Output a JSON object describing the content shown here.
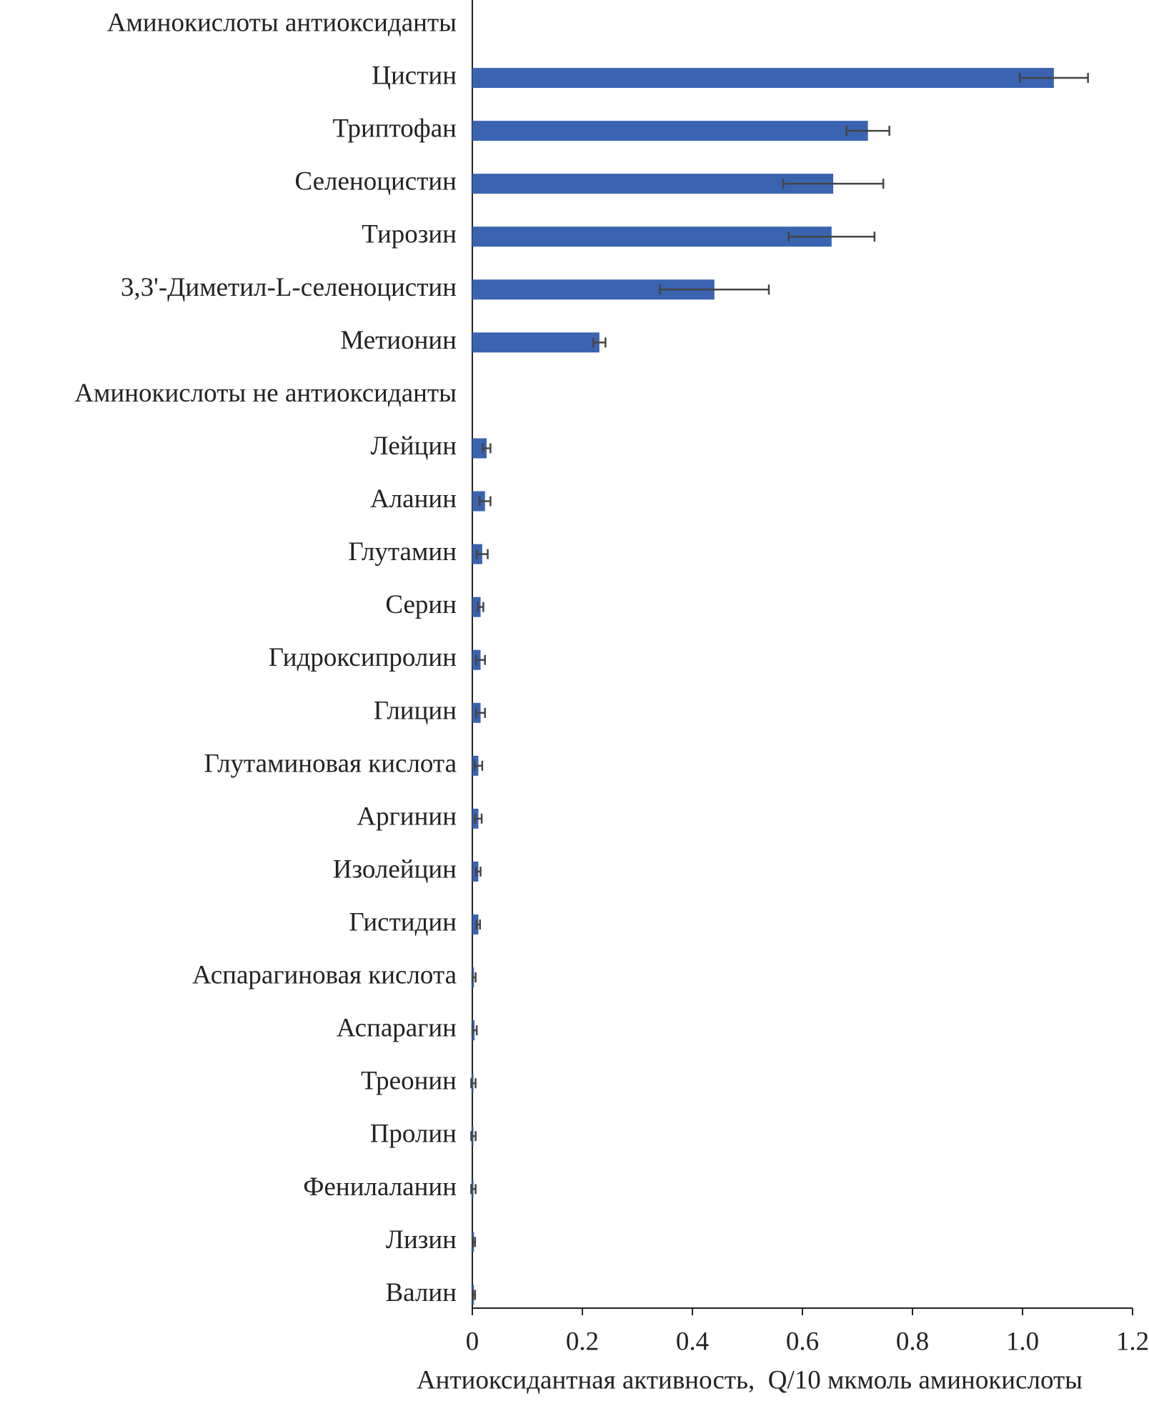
{
  "chart_data": {
    "type": "hbar",
    "xlabel": "Антиоксидантная активность,  Q/10 мкмоль аминокислоты",
    "categories": [
      "Аминокислоты антиоксиданты",
      "Цистин",
      "Триптофан",
      "Селеноцистин",
      "Тирозин",
      "3,3'-Диметил-L-селеноцистин",
      "Метионин",
      "Аминокислоты не антиоксиданты",
      "Лейцин",
      "Аланин",
      "Глутамин",
      "Серин",
      "Гидроксипролин",
      "Глицин",
      "Глутаминовая кислота",
      "Аргинин",
      "Изолейцин",
      "Гистидин",
      "Аспарагиновая кислота",
      "Аспарагин",
      "Треонин",
      "Пролин",
      "Фенилаланин",
      "Лизин",
      "Валин"
    ],
    "values": [
      null,
      1.057,
      0.719,
      0.656,
      0.653,
      0.44,
      0.231,
      null,
      0.026,
      0.023,
      0.018,
      0.015,
      0.015,
      0.015,
      0.011,
      0.011,
      0.011,
      0.011,
      0.003,
      0.004,
      0.002,
      0.002,
      0.002,
      0.003,
      0.003
    ],
    "errors": [
      null,
      0.062,
      0.039,
      0.091,
      0.078,
      0.099,
      0.011,
      null,
      0.007,
      0.01,
      0.01,
      0.005,
      0.008,
      0.008,
      0.007,
      0.006,
      0.004,
      0.003,
      0.003,
      0.004,
      0.004,
      0.004,
      0.004,
      0.002,
      0.002
    ],
    "color": "#3a63b0",
    "error_color": "#444444",
    "xlim": [
      0,
      1.2
    ],
    "xticks": [
      0,
      0.2,
      0.4,
      0.6,
      0.8,
      {
        "value": 1,
        "label": "1.0"
      },
      1.2
    ]
  }
}
